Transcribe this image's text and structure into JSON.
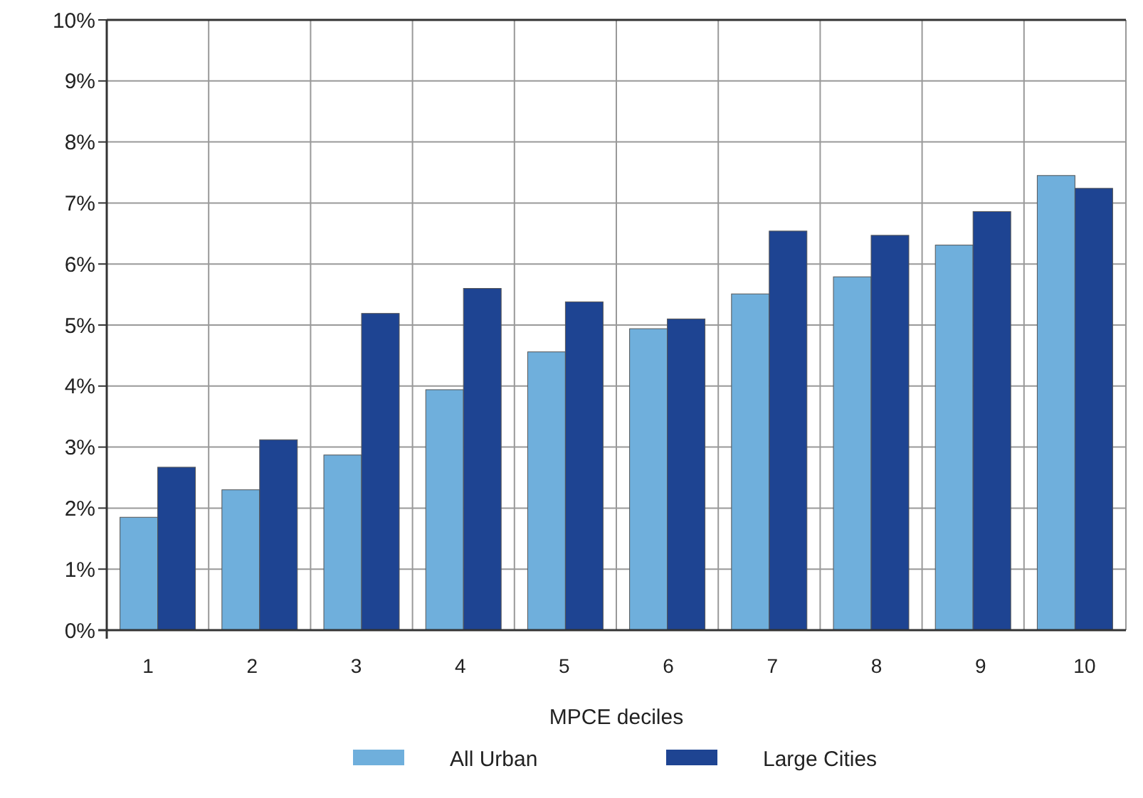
{
  "chart_data": {
    "type": "bar",
    "xlabel": "MPCE deciles",
    "categories": [
      "1",
      "2",
      "3",
      "4",
      "5",
      "6",
      "7",
      "8",
      "9",
      "10"
    ],
    "series": [
      {
        "name": "All Urban",
        "color": "#6fafdc",
        "values": [
          1.85,
          2.3,
          2.87,
          3.94,
          4.56,
          4.94,
          5.51,
          5.79,
          6.31,
          7.45
        ]
      },
      {
        "name": "Large Cities",
        "color": "#1e4492",
        "values": [
          2.67,
          3.12,
          5.19,
          5.6,
          5.38,
          5.1,
          6.54,
          6.47,
          6.86,
          7.24
        ]
      }
    ],
    "ylim": [
      0,
      10
    ],
    "yticks": [
      {
        "value": 0,
        "label": "0%"
      },
      {
        "value": 1,
        "label": "1%"
      },
      {
        "value": 2,
        "label": "2%"
      },
      {
        "value": 3,
        "label": "3%"
      },
      {
        "value": 4,
        "label": "4%"
      },
      {
        "value": 5,
        "label": "5%"
      },
      {
        "value": 6,
        "label": "6%"
      },
      {
        "value": 7,
        "label": "7%"
      },
      {
        "value": 8,
        "label": "8%"
      },
      {
        "value": 9,
        "label": "9%"
      },
      {
        "value": 10,
        "label": "10%"
      }
    ],
    "grid": true,
    "legend": "bottom"
  }
}
